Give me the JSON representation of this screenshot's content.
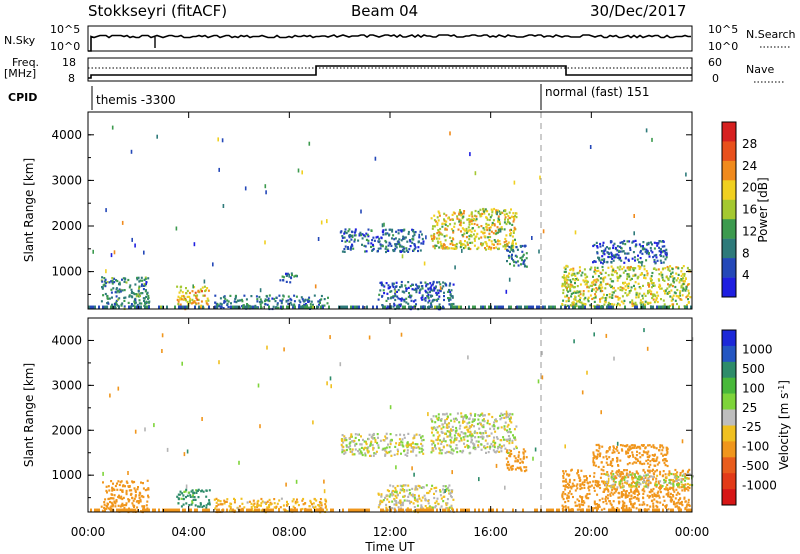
{
  "header": {
    "station": "Stokkseyri (fitACF)",
    "beam": "Beam 04",
    "date": "30/Dec/2017"
  },
  "panel_sky": {
    "left_label": "N.Sky",
    "left_ticks": [
      "10^5",
      "10^0"
    ],
    "right_ticks": [
      "10^5",
      "10^0"
    ],
    "right_label": "N.Search"
  },
  "panel_freq": {
    "left_label_line1": "Freq.",
    "left_label_line2": "[MHz]",
    "left_ticks": [
      "18",
      "8"
    ],
    "right_ticks": [
      "60",
      "0"
    ],
    "right_label": "Nave"
  },
  "panel_cpid": {
    "label": "CPID",
    "segments": [
      {
        "name": "themis -3300",
        "start_h": 0
      },
      {
        "name": "normal (fast) 151",
        "start_h": 18
      }
    ]
  },
  "colors": {
    "power_scale": [
      "#1f1fe0",
      "#2448b8",
      "#2e7a7a",
      "#3c9a4e",
      "#a4c830",
      "#f0d020",
      "#f08a1c",
      "#e8501c",
      "#d62020"
    ],
    "velocity_scale": [
      "#1c28d8",
      "#2456c2",
      "#2e8c6a",
      "#48b83a",
      "#7ed43a",
      "#bebebe",
      "#f0c020",
      "#f0961c",
      "#e85c1c",
      "#e23a18",
      "#d61616"
    ],
    "gs": "#b4b4b4"
  },
  "chart_data": [
    {
      "type": "heatmap",
      "title": "Power",
      "ylabel": "Slant Range [km]",
      "ylim": [
        180,
        4500
      ],
      "y_ticks": [
        "1000",
        "2000",
        "3000",
        "4000"
      ],
      "colorbar_label": "Power [dB]",
      "colorbar_ticks": [
        "4",
        "8",
        "12",
        "16",
        "20",
        "24",
        "28"
      ],
      "clim": [
        0,
        30
      ],
      "regions": [
        {
          "t0": 0.5,
          "t1": 2.4,
          "r0": 200,
          "r1": 900,
          "v": 9
        },
        {
          "t0": 3.5,
          "t1": 4.8,
          "r0": 200,
          "r1": 700,
          "v": 19
        },
        {
          "t0": 5.0,
          "t1": 9.5,
          "r0": 200,
          "r1": 500,
          "v": 8
        },
        {
          "t0": 7.6,
          "t1": 8.3,
          "r0": 780,
          "r1": 1000,
          "v": 7
        },
        {
          "t0": 10.0,
          "t1": 13.3,
          "r0": 1450,
          "r1": 1950,
          "v": 7
        },
        {
          "t0": 13.6,
          "t1": 17.0,
          "r0": 1500,
          "r1": 2400,
          "v": 17
        },
        {
          "t0": 11.5,
          "t1": 14.5,
          "r0": 200,
          "r1": 800,
          "v": 6
        },
        {
          "t0": 16.6,
          "t1": 17.4,
          "r0": 1100,
          "r1": 1600,
          "v": 8
        },
        {
          "t0": 18.8,
          "t1": 23.9,
          "r0": 250,
          "r1": 1150,
          "v": 16
        },
        {
          "t0": 20.0,
          "t1": 23.0,
          "r0": 1200,
          "r1": 1700,
          "v": 6
        }
      ]
    },
    {
      "type": "heatmap",
      "title": "Velocity",
      "ylabel": "Slant Range [km]",
      "xlabel": "Time UT",
      "ylim": [
        180,
        4500
      ],
      "y_ticks": [
        "1000",
        "2000",
        "3000",
        "4000"
      ],
      "x_ticks": [
        "00:00",
        "04:00",
        "08:00",
        "12:00",
        "16:00",
        "20:00",
        "00:00"
      ],
      "colorbar_label": "Velocity [m s",
      "colorbar_unit_sup": "-1",
      "colorbar_ticks": [
        "1000",
        "500",
        "100",
        "25",
        "-25",
        "-100",
        "-500",
        "-1000"
      ],
      "clim": [
        -1000,
        1000
      ],
      "regions": [
        {
          "t0": 0.5,
          "t1": 2.4,
          "r0": 200,
          "r1": 900,
          "v": -180
        },
        {
          "t0": 3.5,
          "t1": 4.8,
          "r0": 300,
          "r1": 700,
          "v": 150
        },
        {
          "t0": 5.0,
          "t1": 9.5,
          "r0": 200,
          "r1": 500,
          "v": -80
        },
        {
          "t0": 10.0,
          "t1": 13.3,
          "r0": 1450,
          "r1": 1950,
          "v": 0
        },
        {
          "t0": 13.6,
          "t1": 17.0,
          "r0": 1500,
          "r1": 2400,
          "v": 0
        },
        {
          "t0": 11.5,
          "t1": 14.5,
          "r0": 200,
          "r1": 800,
          "v": -20
        },
        {
          "t0": 16.6,
          "t1": 17.4,
          "r0": 1100,
          "r1": 1600,
          "v": -300
        },
        {
          "t0": 18.8,
          "t1": 23.9,
          "r0": 250,
          "r1": 1150,
          "v": -250
        },
        {
          "t0": 20.5,
          "t1": 24.0,
          "r0": 750,
          "r1": 1050,
          "v": 0
        },
        {
          "t0": 20.0,
          "t1": 23.0,
          "r0": 1200,
          "r1": 1700,
          "v": -350
        }
      ]
    }
  ]
}
